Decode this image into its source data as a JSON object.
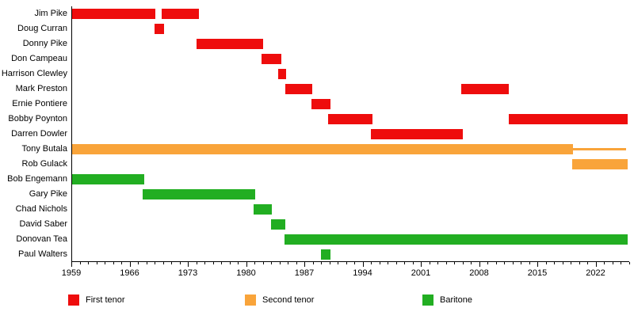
{
  "chart_data": {
    "type": "bar",
    "subtype": "gantt-membership-timeline",
    "title": "",
    "x_axis": {
      "start": 1959,
      "end": 2026,
      "major_ticks": [
        1959,
        1966,
        1973,
        1980,
        1987,
        1994,
        2001,
        2008,
        2015,
        2022
      ],
      "minor_tick_interval": 1,
      "grid": false
    },
    "legend_position": "bottom",
    "legend": [
      {
        "label": "First tenor",
        "color": "#ee0d0d"
      },
      {
        "label": "Second tenor",
        "color": "#f9a43a"
      },
      {
        "label": "Baritone",
        "color": "#22ae22"
      }
    ],
    "axis_color": "#000000",
    "members": [
      {
        "name": "Jim Pike",
        "role": "First tenor",
        "bars": [
          [
            1959,
            1969.1
          ],
          [
            1969.9,
            1974.3
          ]
        ]
      },
      {
        "name": "Doug Curran",
        "role": "First tenor",
        "bars": [
          [
            1969,
            1970.1
          ]
        ]
      },
      {
        "name": "Donny Pike",
        "role": "First tenor",
        "bars": [
          [
            1974,
            1982
          ]
        ]
      },
      {
        "name": "Don Campeau",
        "role": "First tenor",
        "bars": [
          [
            1981.9,
            1984.2
          ]
        ]
      },
      {
        "name": "Harrison Clewley",
        "role": "First tenor",
        "bars": [
          [
            1983.9,
            1984.8
          ]
        ]
      },
      {
        "name": "Mark Preston",
        "role": "First tenor",
        "bars": [
          [
            1984.7,
            1988
          ],
          [
            2005.9,
            2011.6
          ]
        ]
      },
      {
        "name": "Ernie Pontiere",
        "role": "First tenor",
        "bars": [
          [
            1987.9,
            1990.1
          ]
        ]
      },
      {
        "name": "Bobby Poynton",
        "role": "First tenor",
        "bars": [
          [
            1989.9,
            1995.2
          ],
          [
            2011.6,
            2025.9
          ]
        ]
      },
      {
        "name": "Darren Dowler",
        "role": "First tenor",
        "bars": [
          [
            1995,
            2006
          ]
        ]
      },
      {
        "name": "Tony Butala",
        "role": "Second tenor",
        "bars": [
          [
            1959,
            2019.3
          ]
        ],
        "thin_bars": [
          [
            2019.3,
            2025.7
          ]
        ]
      },
      {
        "name": "Rob Gulack",
        "role": "Second tenor",
        "bars": [
          [
            2019.2,
            2025.9
          ]
        ]
      },
      {
        "name": "Bob Engemann",
        "role": "Baritone",
        "bars": [
          [
            1959,
            1967.8
          ]
        ]
      },
      {
        "name": "Gary Pike",
        "role": "Baritone",
        "bars": [
          [
            1967.6,
            1981.1
          ]
        ]
      },
      {
        "name": "Chad Nichols",
        "role": "Baritone",
        "bars": [
          [
            1980.9,
            1983.1
          ]
        ]
      },
      {
        "name": "David Saber",
        "role": "Baritone",
        "bars": [
          [
            1983,
            1984.7
          ]
        ]
      },
      {
        "name": "Donovan Tea",
        "role": "Baritone",
        "bars": [
          [
            1984.6,
            2025.9
          ]
        ]
      },
      {
        "name": "Paul Walters",
        "role": "Baritone",
        "bars": [
          [
            1989,
            1990.1
          ]
        ]
      }
    ]
  }
}
